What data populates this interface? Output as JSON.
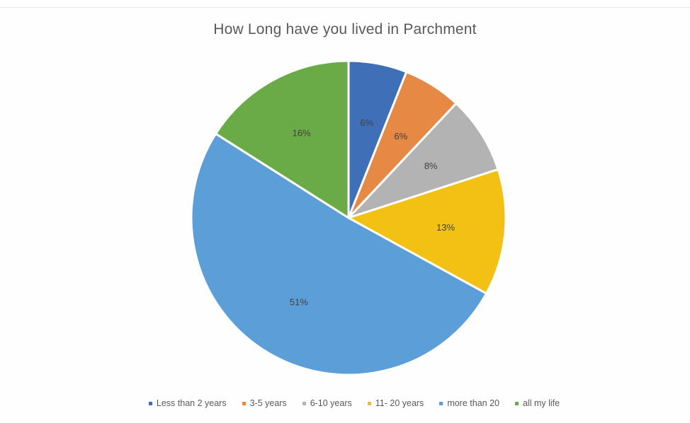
{
  "chart_data": {
    "type": "pie",
    "title": "How Long have you lived in Parchment",
    "categories": [
      "Less than 2 years",
      "3-5 years",
      "6-10 years",
      "11- 20 years",
      "more than 20",
      "all my life"
    ],
    "values": [
      6,
      6,
      8,
      13,
      51,
      16
    ],
    "data_labels": [
      "6%",
      "6%",
      "8%",
      "13%",
      "51%",
      "16%"
    ],
    "colors": [
      "#3f70b7",
      "#e58944",
      "#b3b3b3",
      "#f3c113",
      "#5c9fd8",
      "#6bab47"
    ],
    "legend": "bottom"
  }
}
